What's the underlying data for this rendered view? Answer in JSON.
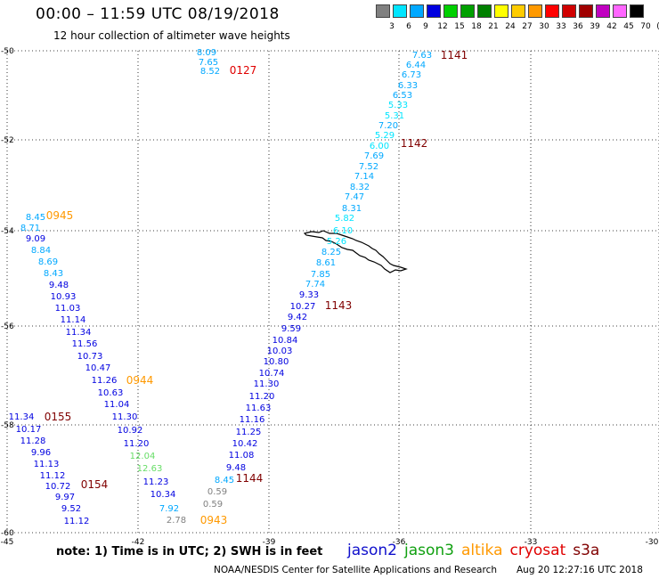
{
  "title": "00:00 – 11:59 UTC 08/19/2018",
  "subtitle": "12 hour collection of altimeter wave heights",
  "colorbar": {
    "labels": [
      "3",
      "6",
      "9",
      "12",
      "15",
      "18",
      "21",
      "24",
      "27",
      "30",
      "33",
      "36",
      "39",
      "42",
      "45",
      "70",
      "(ft)"
    ],
    "colors": [
      "#808080",
      "#00e5ff",
      "#00a8ff",
      "#0000e0",
      "#00d000",
      "#00a000",
      "#008000",
      "#ffff00",
      "#ffcc00",
      "#ff9900",
      "#ff0000",
      "#d00000",
      "#a00000",
      "#c000c0",
      "#ff66ff",
      "#000000"
    ]
  },
  "axes": {
    "lon_ticks": [
      "-45",
      "-42",
      "-39",
      "-36",
      "-33",
      "-30"
    ],
    "lat_ticks": [
      "-50",
      "-52",
      "-54",
      "-56",
      "-58",
      "-60"
    ],
    "lon_range": [
      -45,
      -30
    ],
    "lat_range": [
      -60,
      -50
    ]
  },
  "colors": {
    "jason2": "#1010cc",
    "jason3": "#10a010",
    "altika": "#ff9900",
    "cryosat": "#e00000",
    "s3a": "#800000",
    "time": "#800000",
    "grid": "#000000"
  },
  "tracks": [
    {
      "time": "1141",
      "time_color": "#800000",
      "points": [
        {
          "v": "7.63",
          "c": "#00a8ff"
        },
        {
          "v": "6.44",
          "c": "#00a8ff"
        },
        {
          "v": "6.73",
          "c": "#00a8ff"
        },
        {
          "v": "6.33",
          "c": "#00a8ff"
        },
        {
          "v": "6.53",
          "c": "#00a8ff"
        },
        {
          "v": "5.33",
          "c": "#00e5ff"
        },
        {
          "v": "5.31",
          "c": "#00e5ff"
        },
        {
          "v": "7.20",
          "c": "#00a8ff"
        },
        {
          "v": "5.29",
          "c": "#00e5ff"
        },
        {
          "v": "6.00",
          "c": "#00e5ff"
        },
        {
          "v": "7.69",
          "c": "#00a8ff"
        },
        {
          "v": "7.52",
          "c": "#00a8ff"
        },
        {
          "v": "7.14",
          "c": "#00a8ff"
        },
        {
          "v": "8.32",
          "c": "#00a8ff"
        },
        {
          "v": "7.47",
          "c": "#00a8ff"
        },
        {
          "v": "8.31",
          "c": "#00a8ff"
        },
        {
          "v": "5.82",
          "c": "#00e5ff"
        },
        {
          "v": "6.10",
          "c": "#00e5ff"
        },
        {
          "v": "5.26",
          "c": "#00e5ff"
        },
        {
          "v": "8.25",
          "c": "#00a8ff"
        },
        {
          "v": "8.61",
          "c": "#00a8ff"
        },
        {
          "v": "7.85",
          "c": "#00a8ff"
        },
        {
          "v": "7.74",
          "c": "#00a8ff"
        }
      ]
    },
    {
      "time": "1142",
      "time_color": "#800000"
    },
    {
      "time": "1143",
      "time_color": "#800000",
      "points": [
        {
          "v": "9.33",
          "c": "#0000e0"
        },
        {
          "v": "10.27",
          "c": "#0000e0"
        },
        {
          "v": "9.42",
          "c": "#0000e0"
        },
        {
          "v": "9.59",
          "c": "#0000e0"
        },
        {
          "v": "10.84",
          "c": "#0000e0"
        },
        {
          "v": "10.03",
          "c": "#0000e0"
        },
        {
          "v": "10.80",
          "c": "#0000e0"
        },
        {
          "v": "10.74",
          "c": "#0000e0"
        },
        {
          "v": "11.30",
          "c": "#0000e0"
        },
        {
          "v": "11.20",
          "c": "#0000e0"
        },
        {
          "v": "11.63",
          "c": "#0000e0"
        },
        {
          "v": "11.16",
          "c": "#0000e0"
        },
        {
          "v": "11.25",
          "c": "#0000e0"
        },
        {
          "v": "10.42",
          "c": "#0000e0"
        },
        {
          "v": "11.08",
          "c": "#0000e0"
        },
        {
          "v": "9.48",
          "c": "#0000e0"
        }
      ]
    },
    {
      "time": "1144",
      "time_color": "#800000",
      "points": [
        {
          "v": "8.45",
          "c": "#00a8ff"
        },
        {
          "v": "0.59",
          "c": "#808080"
        },
        {
          "v": "0.59",
          "c": "#808080"
        },
        {
          "v": "7.92",
          "c": "#00a8ff"
        },
        {
          "v": "2.78",
          "c": "#808080"
        }
      ]
    },
    {
      "time": "0943",
      "time_color": "#ff9900"
    },
    {
      "time": "0127",
      "time_color": "#e00000",
      "points": [
        {
          "v": "8.09",
          "c": "#00a8ff"
        },
        {
          "v": "7.65",
          "c": "#00a8ff"
        },
        {
          "v": "8.52",
          "c": "#00a8ff"
        }
      ]
    },
    {
      "time": "0945",
      "time_color": "#ff9900",
      "points": [
        {
          "v": "8.45",
          "c": "#00a8ff"
        },
        {
          "v": "8.71",
          "c": "#00a8ff"
        },
        {
          "v": "9.09",
          "c": "#0000e0"
        },
        {
          "v": "8.84",
          "c": "#00a8ff"
        },
        {
          "v": "8.69",
          "c": "#00a8ff"
        },
        {
          "v": "8.43",
          "c": "#00a8ff"
        },
        {
          "v": "9.48",
          "c": "#0000e0"
        },
        {
          "v": "10.93",
          "c": "#0000e0"
        },
        {
          "v": "11.03",
          "c": "#0000e0"
        },
        {
          "v": "11.14",
          "c": "#0000e0"
        },
        {
          "v": "11.34",
          "c": "#0000e0"
        },
        {
          "v": "11.56",
          "c": "#0000e0"
        },
        {
          "v": "10.73",
          "c": "#0000e0"
        },
        {
          "v": "10.47",
          "c": "#0000e0"
        },
        {
          "v": "11.26",
          "c": "#0000e0"
        },
        {
          "v": "10.63",
          "c": "#0000e0"
        },
        {
          "v": "11.04",
          "c": "#0000e0"
        },
        {
          "v": "11.30",
          "c": "#0000e0"
        },
        {
          "v": "10.92",
          "c": "#0000e0"
        },
        {
          "v": "11.20",
          "c": "#0000e0"
        },
        {
          "v": "12.04",
          "c": "#66dd66"
        },
        {
          "v": "12.63",
          "c": "#66dd66"
        },
        {
          "v": "11.23",
          "c": "#0000e0"
        },
        {
          "v": "10.34",
          "c": "#0000e0"
        }
      ]
    },
    {
      "time": "0944",
      "time_color": "#ff9900"
    },
    {
      "time": "0155",
      "time_color": "#800000",
      "points": [
        {
          "v": "11.34",
          "c": "#0000e0"
        },
        {
          "v": "10.17",
          "c": "#0000e0"
        },
        {
          "v": "11.28",
          "c": "#0000e0"
        },
        {
          "v": "9.96",
          "c": "#0000e0"
        },
        {
          "v": "11.13",
          "c": "#0000e0"
        },
        {
          "v": "11.12",
          "c": "#0000e0"
        },
        {
          "v": "10.72",
          "c": "#0000e0"
        },
        {
          "v": "9.97",
          "c": "#0000e0"
        },
        {
          "v": "9.52",
          "c": "#0000e0"
        },
        {
          "v": "11.12",
          "c": "#0000e0"
        }
      ]
    },
    {
      "time": "0154",
      "time_color": "#800000"
    }
  ],
  "note": "note: 1) Time is in UTC; 2) SWH is in feet",
  "legend": [
    {
      "label": "jason2",
      "color": "#1010cc"
    },
    {
      "label": "jason3",
      "color": "#10a010"
    },
    {
      "label": "altika",
      "color": "#ff9900"
    },
    {
      "label": "cryosat",
      "color": "#e00000"
    },
    {
      "label": "s3a",
      "color": "#800000"
    }
  ],
  "credit": "NOAA/NESDIS Center for Satellite Applications and Research",
  "timestamp": "Aug 20 12:27:16 UTC 2018"
}
